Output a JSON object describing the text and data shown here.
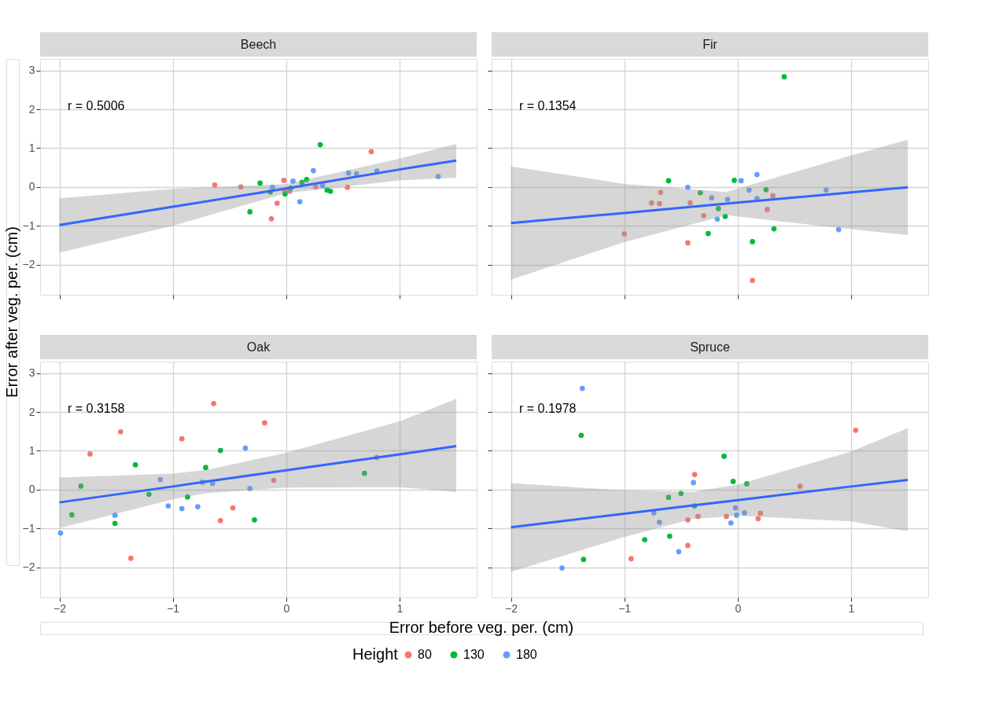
{
  "chart_data": [
    {
      "type": "scatter",
      "title": "Beech",
      "xlabel": "Error before veg. per. (cm)",
      "ylabel": "Error after veg. per. (cm)",
      "legend": "bottom",
      "legend_title": "Height",
      "grid": true,
      "tick_labels": "y",
      "annotations": [
        "r = 0.5006"
      ],
      "xlim": [
        -2.17,
        1.68
      ],
      "ylim": [
        -2.78,
        3.3
      ],
      "xticks": [
        -2,
        -1,
        0,
        1
      ],
      "yticks": [
        -2,
        -1,
        0,
        1,
        2,
        3
      ],
      "series": [
        {
          "name": "80",
          "color": "#f8766d",
          "x": [
            -0.63,
            -0.4,
            -0.13,
            -0.08,
            -0.02,
            -0.01,
            0.03,
            0.26,
            0.54,
            0.75
          ],
          "values": [
            0.05,
            0.0,
            -0.82,
            -0.42,
            0.17,
            -0.11,
            -0.11,
            0.0,
            -0.01,
            0.91
          ]
        },
        {
          "name": "130",
          "color": "#00ba38",
          "x": [
            -0.32,
            -0.23,
            -0.14,
            -0.01,
            0.04,
            0.14,
            0.18,
            0.3,
            0.36,
            0.39
          ],
          "values": [
            -0.64,
            0.1,
            -0.13,
            -0.18,
            -0.03,
            0.12,
            0.19,
            1.09,
            -0.08,
            -0.11
          ]
        },
        {
          "name": "180",
          "color": "#619cff",
          "x": [
            -0.12,
            0.06,
            0.12,
            0.24,
            0.32,
            0.55,
            0.62,
            0.8,
            1.34
          ],
          "values": [
            -0.01,
            0.15,
            -0.38,
            0.42,
            0.03,
            0.36,
            0.34,
            0.41,
            0.27
          ]
        },
        {
          "type": "line",
          "color": "#3366ff",
          "x": [
            -2,
            -1,
            0,
            1,
            1.5
          ],
          "values": [
            -0.98,
            -0.51,
            -0.04,
            0.45,
            0.68
          ],
          "lower": [
            -1.69,
            -1.0,
            -0.16,
            0.17,
            0.24
          ],
          "upper": [
            -0.29,
            -0.05,
            0.08,
            0.73,
            1.11
          ]
        }
      ]
    },
    {
      "type": "scatter",
      "title": "Fir",
      "grid": true,
      "tick_labels": false,
      "annotations": [
        "r = 0.1354"
      ],
      "xlim": [
        -2.17,
        1.68
      ],
      "ylim": [
        -2.78,
        3.3
      ],
      "xticks": [
        -2,
        -1,
        0,
        1
      ],
      "yticks": [
        -2,
        -1,
        0,
        1,
        2,
        3
      ],
      "series": [
        {
          "name": "80",
          "color": "#f8766d",
          "x": [
            -1.0,
            -0.76,
            -0.69,
            -0.68,
            -0.44,
            -0.42,
            -0.3,
            0.13,
            0.26,
            0.31
          ],
          "values": [
            -1.21,
            -0.41,
            -0.43,
            -0.14,
            -1.44,
            -0.41,
            -0.74,
            -2.41,
            -0.58,
            -0.23
          ]
        },
        {
          "name": "130",
          "color": "#00ba38",
          "x": [
            -0.61,
            -0.33,
            -0.26,
            -0.17,
            -0.11,
            -0.03,
            0.13,
            0.25,
            0.32,
            0.41
          ],
          "values": [
            0.16,
            -0.15,
            -1.2,
            -0.56,
            -0.76,
            0.17,
            -1.41,
            -0.07,
            -1.08,
            2.84
          ]
        },
        {
          "name": "180",
          "color": "#619cff",
          "x": [
            -0.44,
            -0.23,
            -0.18,
            -0.09,
            0.03,
            0.1,
            0.17,
            0.17,
            0.78,
            0.89
          ],
          "values": [
            -0.01,
            -0.28,
            -0.83,
            -0.32,
            0.16,
            -0.08,
            0.32,
            -0.3,
            -0.08,
            -1.1
          ]
        },
        {
          "type": "line",
          "color": "#3366ff",
          "x": [
            -2,
            -1,
            -0.1,
            1,
            1.5
          ],
          "values": [
            -0.93,
            -0.67,
            -0.43,
            -0.14,
            -0.01
          ],
          "lower": [
            -2.39,
            -1.42,
            -0.73,
            -1.09,
            -1.24
          ],
          "upper": [
            0.53,
            0.08,
            -0.13,
            0.81,
            1.22
          ]
        }
      ]
    },
    {
      "type": "scatter",
      "title": "Oak",
      "grid": true,
      "annotations": [
        "r = 0.3158"
      ],
      "xlim": [
        -2.17,
        1.68
      ],
      "ylim": [
        -2.78,
        3.3
      ],
      "xticks": [
        -2,
        -1,
        0,
        1
      ],
      "yticks": [
        -2,
        -1,
        0,
        1,
        2,
        3
      ],
      "series": [
        {
          "name": "80",
          "color": "#f8766d",
          "x": [
            -1.73,
            -1.46,
            -1.37,
            -0.92,
            -0.64,
            -0.58,
            -0.47,
            -0.19,
            -0.11,
            0.8
          ],
          "values": [
            0.92,
            1.49,
            -1.77,
            1.31,
            2.22,
            -0.8,
            -0.47,
            1.72,
            0.24,
            0.83
          ]
        },
        {
          "name": "130",
          "color": "#00ba38",
          "x": [
            -1.89,
            -1.81,
            -1.51,
            -1.33,
            -1.21,
            -0.87,
            -0.71,
            -0.58,
            -0.28,
            0.69
          ],
          "values": [
            -0.65,
            0.09,
            -0.87,
            0.64,
            -0.12,
            -0.19,
            0.57,
            1.01,
            -0.78,
            0.42
          ]
        },
        {
          "name": "180",
          "color": "#619cff",
          "x": [
            -1.99,
            -1.51,
            -1.11,
            -1.04,
            -0.92,
            -0.78,
            -0.74,
            -0.65,
            -0.36,
            -0.32
          ],
          "values": [
            -1.12,
            -0.66,
            0.26,
            -0.42,
            -0.49,
            -0.44,
            0.19,
            0.16,
            1.07,
            0.03
          ]
        },
        {
          "type": "line",
          "color": "#3366ff",
          "x": [
            -2,
            -1,
            -0.7,
            0,
            1,
            1.5
          ],
          "values": [
            -0.33,
            0.08,
            0.21,
            0.5,
            0.91,
            1.12
          ],
          "lower": [
            -0.99,
            -0.25,
            -0.09,
            0.05,
            0.06,
            -0.06
          ],
          "upper": [
            0.31,
            0.41,
            0.51,
            0.95,
            1.76,
            2.34
          ]
        }
      ]
    },
    {
      "type": "scatter",
      "title": "Spruce",
      "grid": true,
      "tick_labels": "x",
      "annotations": [
        "r = 0.1978"
      ],
      "xlim": [
        -2.17,
        1.68
      ],
      "ylim": [
        -2.78,
        3.3
      ],
      "xticks": [
        -2,
        -1,
        0,
        1
      ],
      "yticks": [
        -2,
        -1,
        0,
        1,
        2,
        3
      ],
      "series": [
        {
          "name": "80",
          "color": "#f8766d",
          "x": [
            -0.94,
            -0.44,
            -0.44,
            -0.38,
            -0.35,
            -0.1,
            0.18,
            0.2,
            0.55,
            1.04
          ],
          "values": [
            -1.78,
            -1.44,
            -0.78,
            0.39,
            -0.69,
            -0.69,
            -0.75,
            -0.61,
            0.09,
            1.53
          ]
        },
        {
          "name": "130",
          "color": "#00ba38",
          "x": [
            -1.38,
            -1.36,
            -0.82,
            -0.61,
            -0.6,
            -0.5,
            -0.38,
            -0.12,
            -0.04,
            0.08
          ],
          "values": [
            1.4,
            -1.8,
            -1.29,
            -0.2,
            -1.2,
            -0.1,
            -0.42,
            0.86,
            0.21,
            0.15
          ]
        },
        {
          "name": "180",
          "color": "#619cff",
          "x": [
            -1.55,
            -1.37,
            -0.74,
            -0.69,
            -0.52,
            -0.39,
            -0.06,
            -0.02,
            -0.01,
            0.06
          ],
          "values": [
            -2.02,
            2.61,
            -0.6,
            -0.84,
            -1.6,
            0.18,
            -0.86,
            -0.47,
            -0.66,
            -0.6
          ]
        },
        {
          "type": "line",
          "color": "#3366ff",
          "x": [
            -2,
            -1,
            -0.4,
            0,
            1,
            1.5
          ],
          "values": [
            -0.97,
            -0.62,
            -0.41,
            -0.27,
            0.08,
            0.25
          ],
          "lower": [
            -2.12,
            -1.22,
            -0.76,
            -0.67,
            -0.82,
            -1.07
          ],
          "upper": [
            0.17,
            -0.02,
            -0.06,
            0.13,
            0.98,
            1.59
          ]
        }
      ]
    }
  ]
}
